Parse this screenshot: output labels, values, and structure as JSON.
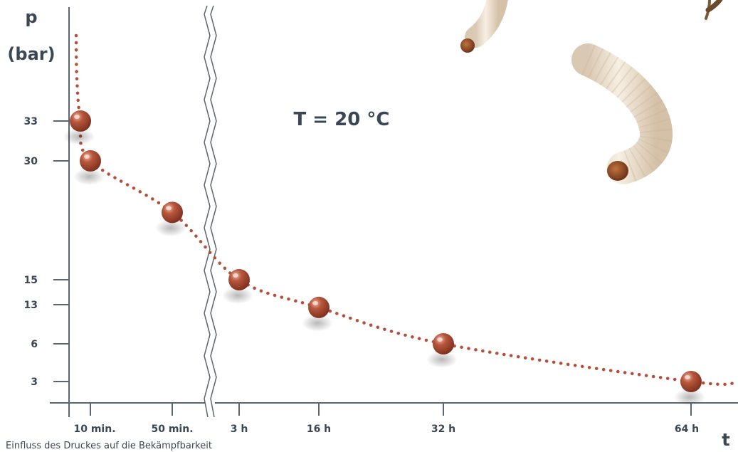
{
  "chart_data": {
    "type": "scatter",
    "title": "",
    "xlabel": "t",
    "ylabel": "p",
    "ylabel_unit": "(bar)",
    "annotation": "T = 20 °C",
    "x_ticks": [
      "10 min.",
      "50 min.",
      "3 h",
      "16 h",
      "32 h",
      "64 h"
    ],
    "y_ticks": [
      33,
      30,
      15,
      13,
      6,
      3
    ],
    "ylim": [
      0,
      42
    ],
    "x_axis_break": "between 50 min. and 3 h",
    "trend_line": "dotted",
    "grid": false,
    "points": [
      {
        "x": "5 min.",
        "y": 33
      },
      {
        "x": "10 min.",
        "y": 30
      },
      {
        "x": "50 min.",
        "y": 23.5
      },
      {
        "x": "3 h",
        "y": 15
      },
      {
        "x": "16 h",
        "y": 12.5
      },
      {
        "x": "32 h",
        "y": 6
      },
      {
        "x": "64 h",
        "y": 3
      }
    ]
  },
  "colors": {
    "axis": "#5a6670",
    "text": "#3a4754",
    "marker": "#a4432b",
    "marker_highlight": "#e3a48e",
    "trend": "#b4503a",
    "larva": "#efe3d2",
    "larva_head": "#8a4a28"
  },
  "decorations": {
    "illustration": "wax-moth-larvae-icon"
  },
  "caption": "Einfluss des Druckes auf die Bekämpfbarkeit"
}
